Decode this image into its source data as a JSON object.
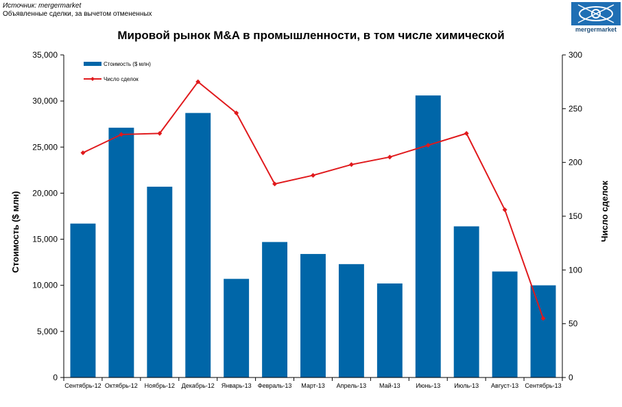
{
  "header": {
    "source_line": "Источник: mergermarket",
    "note_line": "Объявленные сделки, за вычетом отмененных",
    "logo_text": "mergermarket"
  },
  "colors": {
    "bar": "#0066a8",
    "line": "#e0191c",
    "logo": "#1f6fb4"
  },
  "chart_data": {
    "type": "bar",
    "title": "Мировой рынок M&A в промышленности, в том числе химической",
    "categories": [
      "Сентябрь-12",
      "Октябрь-12",
      "Ноябрь-12",
      "Декабрь-12",
      "Январь-13",
      "Февраль-13",
      "Март-13",
      "Апрель-13",
      "Май-13",
      "Июнь-13",
      "Июль-13",
      "Август-13",
      "Сентябрь-13"
    ],
    "ylabel": "Стоимость ($ млн)",
    "y2label": "Число сделок",
    "ylim": [
      0,
      35000
    ],
    "y2lim": [
      0,
      300
    ],
    "yticks": [
      "0",
      "5,000",
      "10,000",
      "15,000",
      "20,000",
      "25,000",
      "30,000",
      "35,000"
    ],
    "y2ticks": [
      "0",
      "50",
      "100",
      "150",
      "200",
      "250",
      "300"
    ],
    "legend_position": "top-left",
    "grid": false,
    "series": [
      {
        "name": "Стоимость ($ млн)",
        "type": "bar",
        "axis": "left",
        "values": [
          16700,
          27100,
          20700,
          28700,
          10700,
          14700,
          13400,
          12300,
          10200,
          30600,
          16400,
          11500,
          10000
        ]
      },
      {
        "name": "Число сделок",
        "type": "line",
        "axis": "right",
        "values": [
          209,
          226,
          227,
          275,
          246,
          180,
          188,
          198,
          205,
          216,
          227,
          156,
          55
        ]
      }
    ]
  }
}
